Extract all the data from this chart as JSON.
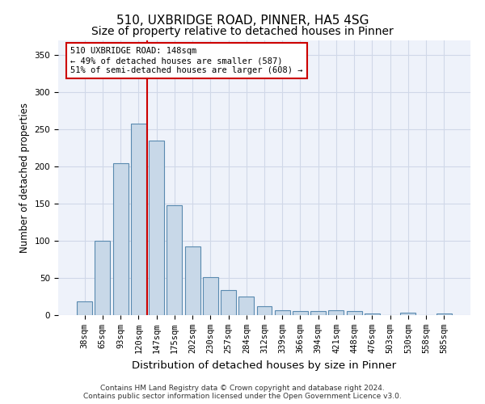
{
  "title": "510, UXBRIDGE ROAD, PINNER, HA5 4SG",
  "subtitle": "Size of property relative to detached houses in Pinner",
  "xlabel": "Distribution of detached houses by size in Pinner",
  "ylabel": "Number of detached properties",
  "categories": [
    "38sqm",
    "65sqm",
    "93sqm",
    "120sqm",
    "147sqm",
    "175sqm",
    "202sqm",
    "230sqm",
    "257sqm",
    "284sqm",
    "312sqm",
    "339sqm",
    "366sqm",
    "394sqm",
    "421sqm",
    "448sqm",
    "476sqm",
    "503sqm",
    "530sqm",
    "558sqm",
    "585sqm"
  ],
  "values": [
    18,
    100,
    205,
    258,
    235,
    148,
    93,
    51,
    34,
    25,
    12,
    7,
    5,
    5,
    6,
    5,
    2,
    0,
    3,
    0,
    2
  ],
  "bar_color": "#c8d8e8",
  "bar_edge_color": "#5a8ab0",
  "grid_color": "#d0d8e8",
  "background_color": "#eef2fa",
  "annotation_box_color": "#ffffff",
  "annotation_box_edge": "#cc0000",
  "annotation_line_color": "#cc0000",
  "annotation_text": "510 UXBRIDGE ROAD: 148sqm\n← 49% of detached houses are smaller (587)\n51% of semi-detached houses are larger (608) →",
  "red_line_x": 3.5,
  "ylim": [
    0,
    370
  ],
  "yticks": [
    0,
    50,
    100,
    150,
    200,
    250,
    300,
    350
  ],
  "footer": "Contains HM Land Registry data © Crown copyright and database right 2024.\nContains public sector information licensed under the Open Government Licence v3.0.",
  "title_fontsize": 11,
  "subtitle_fontsize": 10,
  "xlabel_fontsize": 9.5,
  "ylabel_fontsize": 8.5,
  "tick_fontsize": 7.5,
  "footer_fontsize": 6.5
}
